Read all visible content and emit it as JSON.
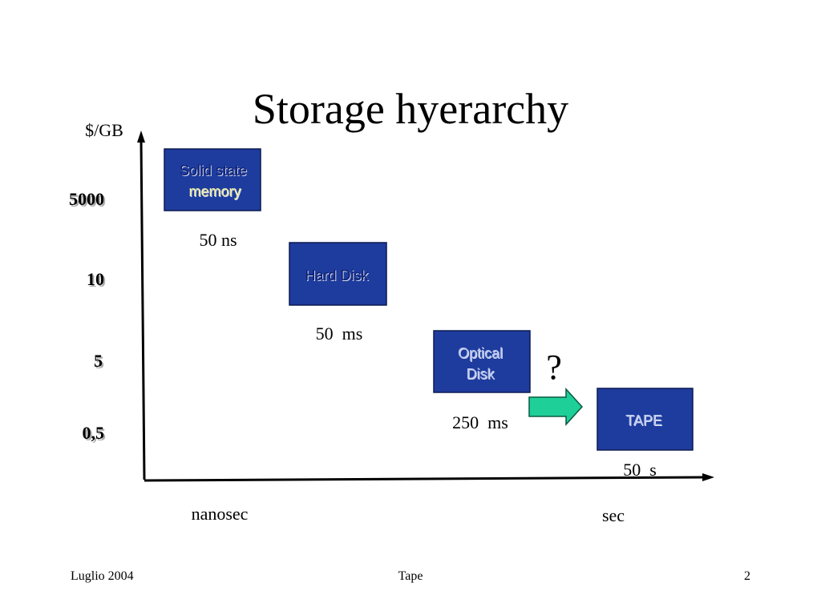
{
  "title": "Storage hyerarchy",
  "y_axis": {
    "label": "$/GB",
    "ticks": [
      "5000",
      "10",
      "5",
      "0,5"
    ]
  },
  "x_axis": {
    "labels": [
      "nanosec",
      "sec"
    ]
  },
  "nodes": [
    {
      "lines": [
        "Solid state",
        "memory"
      ],
      "latency": "50 ns"
    },
    {
      "lines": [
        "Hard Disk"
      ],
      "latency": "50  ms"
    },
    {
      "lines": [
        "Optical",
        "Disk"
      ],
      "latency": "250  ms"
    },
    {
      "lines": [
        "TAPE"
      ],
      "latency": "50  s"
    }
  ],
  "annotation": "?",
  "footer": {
    "left": "Luglio 2004",
    "center": "Tape",
    "right": "2"
  }
}
